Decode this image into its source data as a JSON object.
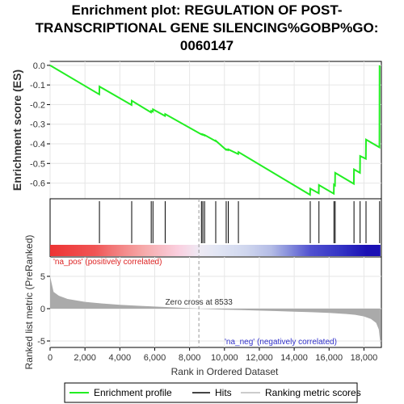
{
  "chart_data": {
    "type": "line",
    "title_lines": [
      "Enrichment plot: REGULATION OF POST-",
      "TRANSCRIPTIONAL GENE SILENCING%GOBP%GO:",
      "0060147"
    ],
    "xlabel": "Rank in Ordered Dataset",
    "ylabel_top": "Enrichment score (ES)",
    "ylabel_bottom": "Ranked list metric (PreRanked)",
    "xlim": [
      0,
      19000
    ],
    "x_ticks": [
      0,
      2000,
      4000,
      6000,
      8000,
      10000,
      12000,
      14000,
      16000,
      18000
    ],
    "x_tick_labels": [
      "0",
      "2,000",
      "4,000",
      "6,000",
      "8,000",
      "10,000",
      "12,000",
      "14,000",
      "16,000",
      "18,000"
    ],
    "es_ylim": [
      -0.68,
      0.02
    ],
    "es_ticks": [
      0.0,
      -0.1,
      -0.2,
      -0.3,
      -0.4,
      -0.5,
      -0.6
    ],
    "es_tick_labels": [
      "0.0",
      "-0.1",
      "-0.2",
      "-0.3",
      "-0.4",
      "-0.5",
      "-0.6"
    ],
    "metric_ylim": [
      -6,
      8
    ],
    "metric_ticks": [
      5,
      0,
      -5
    ],
    "metric_tick_labels": [
      "5",
      "0",
      "-5"
    ],
    "hits": [
      2830,
      4680,
      5800,
      5900,
      6600,
      8680,
      8760,
      8860,
      9500,
      10100,
      10220,
      10800,
      14920,
      15420,
      16280,
      16350,
      17430,
      17780,
      18120,
      18900
    ],
    "es_profile": {
      "x": [
        0,
        2820,
        2830,
        4670,
        4680,
        5790,
        5800,
        5890,
        5900,
        6590,
        6600,
        8670,
        8680,
        8750,
        8760,
        8850,
        8860,
        9490,
        9500,
        10090,
        10100,
        10210,
        10220,
        10790,
        10800,
        14910,
        14920,
        15410,
        15420,
        16270,
        16280,
        16340,
        16350,
        17420,
        17430,
        17770,
        17780,
        18110,
        18120,
        18890,
        18900
      ],
      "y": [
        0.0,
        -0.148,
        -0.108,
        -0.202,
        -0.18,
        -0.24,
        -0.232,
        -0.236,
        -0.224,
        -0.258,
        -0.248,
        -0.352,
        -0.35,
        -0.354,
        -0.352,
        -0.357,
        -0.355,
        -0.386,
        -0.384,
        -0.43,
        -0.428,
        -0.432,
        -0.428,
        -0.452,
        -0.442,
        -0.66,
        -0.628,
        -0.652,
        -0.61,
        -0.654,
        -0.608,
        -0.612,
        -0.548,
        -0.604,
        -0.53,
        -0.548,
        -0.462,
        -0.476,
        -0.378,
        -0.418,
        0.0
      ]
    },
    "metric": {
      "x": [
        0,
        200,
        500,
        1000,
        2000,
        3000,
        4000,
        5000,
        6000,
        7000,
        8000,
        8533,
        9000,
        10000,
        11000,
        12000,
        13000,
        14000,
        15000,
        16000,
        17000,
        17500,
        18000,
        18400,
        18700,
        18850,
        18950
      ],
      "y": [
        5.0,
        2.6,
        2.0,
        1.5,
        1.05,
        0.8,
        0.6,
        0.45,
        0.33,
        0.2,
        0.07,
        0.0,
        -0.06,
        -0.15,
        -0.23,
        -0.3,
        -0.38,
        -0.46,
        -0.55,
        -0.66,
        -0.82,
        -0.95,
        -1.2,
        -1.6,
        -2.2,
        -3.2,
        -5.6
      ]
    },
    "zero_cross_x": 8533,
    "zero_cross_label": "Zero cross at 8533",
    "pos_label": "'na_pos' (positively correlated)",
    "neg_label": "'na_neg' (negatively correlated)",
    "colors": {
      "profile": "#22ee22",
      "hits": "#000000",
      "metric_fill": "#aaaaaa",
      "pos_text": "#dd2222",
      "neg_text": "#3333cc"
    },
    "heatmap_stops": [
      {
        "x": 0,
        "color": "#ee3333"
      },
      {
        "x": 2600,
        "color": "#f05555"
      },
      {
        "x": 3600,
        "color": "#f27777"
      },
      {
        "x": 5400,
        "color": "#f6aaaa"
      },
      {
        "x": 7400,
        "color": "#fad0e0"
      },
      {
        "x": 8600,
        "color": "#eeeaf4"
      },
      {
        "x": 9600,
        "color": "#e2e6f4"
      },
      {
        "x": 11300,
        "color": "#cfd6ee"
      },
      {
        "x": 12700,
        "color": "#b4bce6"
      },
      {
        "x": 13700,
        "color": "#8890dc"
      },
      {
        "x": 15000,
        "color": "#5050d0"
      },
      {
        "x": 16800,
        "color": "#3232c4"
      },
      {
        "x": 18200,
        "color": "#1a10b4"
      }
    ],
    "legend": [
      {
        "label": "Enrichment profile",
        "color": "#22ee22"
      },
      {
        "label": "Hits",
        "color": "#444444"
      },
      {
        "label": "Ranking metric scores",
        "color": "#cccccc"
      }
    ]
  }
}
